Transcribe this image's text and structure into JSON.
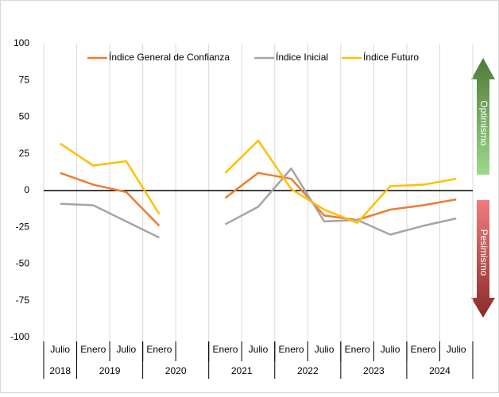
{
  "chart_data": {
    "type": "line",
    "categories": [
      "Julio",
      "Enero",
      "Julio",
      "Enero",
      null,
      "Enero",
      "Julio",
      "Enero",
      "Julio",
      "Enero",
      "Julio",
      "Enero",
      "Julio"
    ],
    "year_labels": [
      "2018",
      "2019",
      "2020",
      "2021",
      "2022",
      "2023",
      "2024"
    ],
    "series": [
      {
        "name": "Índice General de Confianza",
        "color": "#ed7d31",
        "values": [
          12,
          4,
          -1,
          -24,
          null,
          -5,
          12,
          8,
          -17,
          -20,
          -13,
          -10,
          -6
        ]
      },
      {
        "name": "Índice Inicial",
        "color": "#a5a5a5",
        "values": [
          -9,
          -10,
          -21,
          -32,
          null,
          -23,
          -11,
          15,
          -21,
          -20,
          -30,
          -24,
          -19
        ]
      },
      {
        "name": "Índice Futuro",
        "color": "#ffc000",
        "values": [
          32,
          17,
          20,
          -16,
          null,
          12,
          34,
          1,
          -13,
          -22,
          3,
          4,
          8
        ]
      }
    ],
    "ylim": [
      -100,
      100
    ],
    "yticks": [
      -100,
      -75,
      -50,
      -25,
      0,
      25,
      50,
      75,
      100
    ],
    "annotations": [
      "Optimismo",
      "Pesimismo"
    ],
    "legend": "top"
  }
}
